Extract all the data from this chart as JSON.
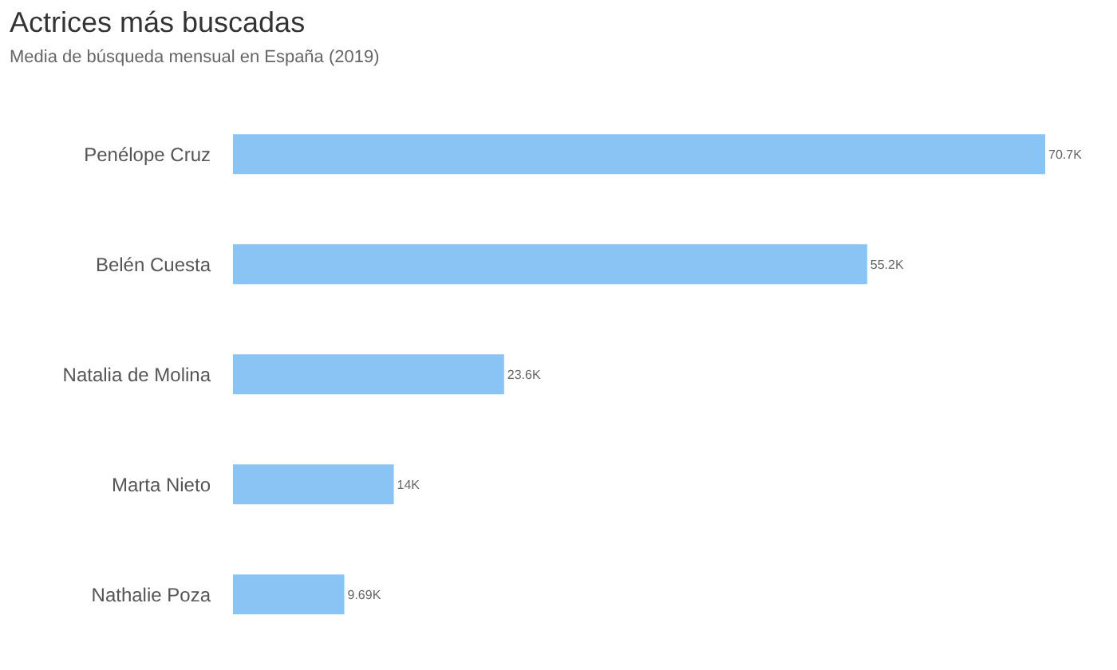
{
  "chart_data": {
    "type": "bar",
    "orientation": "horizontal",
    "title": "Actrices más buscadas",
    "subtitle": "Media de búsqueda mensual en España (2019)",
    "categories": [
      "Penélope Cruz",
      "Belén Cuesta",
      "Natalia de Molina",
      "Marta Nieto",
      "Nathalie Poza"
    ],
    "values": [
      70700,
      55200,
      23600,
      14000,
      9690
    ],
    "value_labels": [
      "70.7K",
      "55.2K",
      "23.6K",
      "14K",
      "9.69K"
    ],
    "color": "#89c4f4"
  }
}
